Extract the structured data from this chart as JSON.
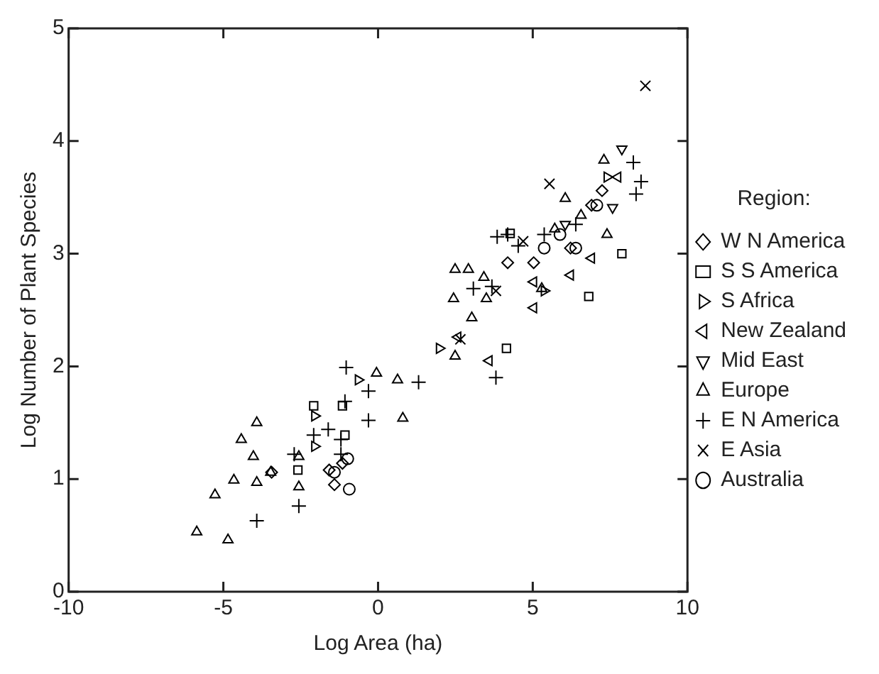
{
  "chart_data": {
    "type": "scatter",
    "xlabel": "Log Area (ha)",
    "ylabel": "Log Number of Plant Species",
    "legend_title": "Region:",
    "legend": "right",
    "grid": false,
    "xlim": [
      -10,
      10
    ],
    "xticks": [
      -10,
      -5,
      0,
      5,
      10
    ],
    "ylim": [
      0,
      5
    ],
    "yticks": [
      0,
      1,
      2,
      3,
      4,
      5
    ],
    "series": [
      {
        "name": "W N America",
        "marker": "diamond",
        "color": "#000000",
        "x": [
          -1.58,
          -1.41,
          -3.44,
          4.19,
          6.9,
          6.22,
          7.24,
          5.03,
          -1.15
        ],
        "values": [
          1.08,
          0.95,
          1.06,
          2.92,
          3.43,
          3.05,
          3.56,
          2.92,
          1.14
        ]
      },
      {
        "name": "S S America",
        "marker": "square",
        "color": "#000000",
        "x": [
          7.88,
          6.81,
          4.15,
          -2.59,
          -1.15,
          4.27,
          -1.07,
          -2.08
        ],
        "values": [
          3.0,
          2.62,
          2.16,
          1.08,
          1.65,
          3.18,
          1.39,
          1.65
        ]
      },
      {
        "name": "S Africa",
        "marker": "triangle-right",
        "color": "#000000",
        "x": [
          -2.05,
          -2.05,
          -0.64,
          1.98,
          5.37,
          7.4
        ],
        "values": [
          1.29,
          1.56,
          1.88,
          2.16,
          2.67,
          3.68
        ]
      },
      {
        "name": "New Zealand",
        "marker": "triangle-left",
        "color": "#000000",
        "x": [
          3.59,
          5.03,
          6.22,
          5.03,
          6.9,
          2.58,
          7.75
        ],
        "values": [
          2.05,
          2.52,
          2.81,
          2.75,
          2.96,
          2.26,
          3.68
        ]
      },
      {
        "name": "Mid East",
        "marker": "triangle-down",
        "color": "#000000",
        "x": [
          7.88,
          7.58,
          6.05
        ],
        "values": [
          3.93,
          3.41,
          3.26
        ]
      },
      {
        "name": "Europe",
        "marker": "triangle",
        "color": "#000000",
        "x": [
          -5.86,
          -4.85,
          -5.27,
          -4.66,
          -4.42,
          -3.92,
          -4.03,
          -3.92,
          -3.47,
          -2.56,
          -2.56,
          -0.05,
          0.63,
          0.8,
          2.49,
          2.92,
          3.42,
          2.44,
          3.03,
          3.5,
          2.49,
          7.4,
          7.3,
          6.05,
          5.29,
          5.71,
          6.56
        ],
        "values": [
          0.53,
          0.46,
          0.86,
          0.99,
          1.35,
          1.5,
          1.2,
          0.97,
          1.06,
          0.93,
          1.2,
          1.94,
          1.88,
          1.54,
          2.86,
          2.86,
          2.79,
          2.6,
          2.43,
          2.6,
          2.09,
          3.17,
          3.83,
          3.49,
          2.69,
          3.22,
          3.34
        ]
      },
      {
        "name": "E N America",
        "marker": "plus",
        "color": "#000000",
        "x": [
          -2.56,
          -3.92,
          -1.03,
          -0.31,
          -0.31,
          1.31,
          3.81,
          -1.61,
          -1.2,
          -1.2,
          3.68,
          3.08,
          3.85,
          8.25,
          8.5,
          8.34,
          -2.71,
          -2.08,
          -1.07,
          4.53,
          5.37,
          6.39,
          4.19
        ],
        "values": [
          0.76,
          0.63,
          1.99,
          1.78,
          1.52,
          1.86,
          1.9,
          1.44,
          1.35,
          1.22,
          2.71,
          2.69,
          3.15,
          3.81,
          3.64,
          3.53,
          1.22,
          1.39,
          1.69,
          3.07,
          3.17,
          3.26,
          3.17
        ]
      },
      {
        "name": "E Asia",
        "marker": "cross",
        "color": "#000000",
        "x": [
          8.64,
          5.54,
          3.81,
          2.66,
          4.69
        ],
        "values": [
          4.49,
          3.62,
          2.67,
          2.24,
          3.11
        ]
      },
      {
        "name": "Australia",
        "marker": "circle",
        "color": "#000000",
        "x": [
          -0.93,
          -1.41,
          -0.98,
          6.39,
          7.07,
          5.37,
          5.88
        ],
        "values": [
          0.91,
          1.06,
          1.18,
          3.05,
          3.43,
          3.05,
          3.17
        ]
      }
    ]
  }
}
